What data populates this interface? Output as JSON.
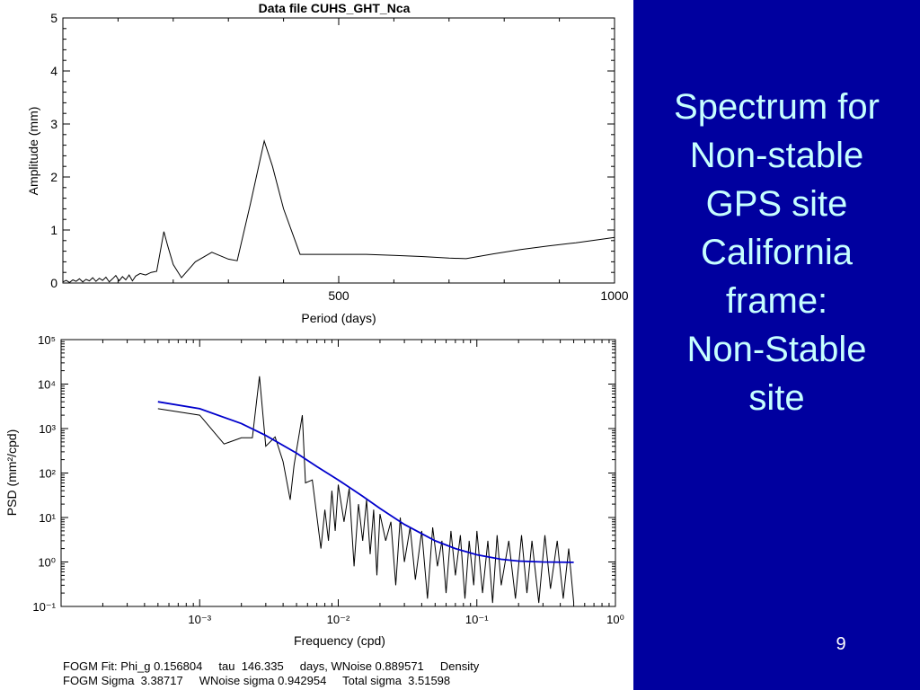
{
  "slide": {
    "title_lines": [
      "Spectrum for",
      "Non-stable",
      "GPS site",
      " California",
      "frame:",
      "Non-Stable",
      "site"
    ],
    "page_number": "9",
    "footer_lines": [
      "FOGM Fit: Phi_g 0.156804     tau  146.335     days, WNoise 0.889571     Density",
      "FOGM Sigma  3.38717     WNoise sigma 0.942954     Total sigma  3.51598"
    ]
  },
  "colors": {
    "panel_background": "#00009f",
    "title_text": "#c6ffff",
    "fit_line": "#0000cc",
    "data_line": "#000000"
  },
  "chart_data": [
    {
      "type": "line",
      "title": "Data file CUHS_GHT_Nca",
      "xlabel": "Period (days)",
      "ylabel": "Amplitude (mm)",
      "xlim": [
        0,
        1000
      ],
      "ylim": [
        0,
        5
      ],
      "xticks": [
        500,
        1000
      ],
      "yticks": [
        0,
        1,
        2,
        3,
        4,
        5
      ],
      "grid": false,
      "series": [
        {
          "x": [
            0,
            6,
            12,
            18,
            24,
            30,
            36,
            42,
            48,
            54,
            60,
            66,
            72,
            78,
            84,
            90,
            96,
            102,
            108,
            114,
            120,
            126,
            132,
            140,
            150,
            160,
            170,
            183,
            190,
            200,
            215,
            240,
            270,
            300,
            316,
            340,
            365,
            380,
            400,
            430,
            480,
            550,
            600,
            650,
            700,
            731,
            780,
            830,
            880,
            930,
            980,
            1000
          ],
          "y": [
            0.02,
            0.05,
            0.01,
            0.06,
            0.03,
            0.08,
            0.02,
            0.07,
            0.04,
            0.1,
            0.03,
            0.09,
            0.05,
            0.11,
            0.02,
            0.08,
            0.14,
            0.04,
            0.12,
            0.06,
            0.15,
            0.04,
            0.13,
            0.18,
            0.15,
            0.2,
            0.22,
            0.97,
            0.7,
            0.35,
            0.1,
            0.4,
            0.58,
            0.45,
            0.42,
            1.5,
            2.68,
            2.2,
            1.4,
            0.54,
            0.54,
            0.54,
            0.52,
            0.5,
            0.47,
            0.46,
            0.55,
            0.63,
            0.7,
            0.76,
            0.83,
            0.86
          ]
        }
      ]
    },
    {
      "type": "line",
      "xlabel": "Frequency (cpd)",
      "ylabel": "PSD (mm²/cpd)",
      "xscale": "log",
      "yscale": "log",
      "xlim": [
        0.0001,
        1
      ],
      "ylim": [
        0.1,
        100000
      ],
      "xtick_labels": [
        "10⁻³",
        "10⁻²",
        "10⁻¹",
        "10⁰"
      ],
      "ytick_labels": [
        "10⁻¹",
        "10⁰",
        "10¹",
        "10²",
        "10³",
        "10⁴",
        "10⁵"
      ],
      "grid": false,
      "series": [
        {
          "x": [
            0.0005,
            0.001,
            0.0015,
            0.002,
            0.0024,
            0.0027,
            0.003,
            0.0035,
            0.004,
            0.0045,
            0.0048,
            0.0055,
            0.0058,
            0.0065,
            0.0075,
            0.008,
            0.0085,
            0.009,
            0.0095,
            0.01,
            0.011,
            0.012,
            0.013,
            0.014,
            0.015,
            0.016,
            0.017,
            0.018,
            0.019,
            0.02,
            0.022,
            0.024,
            0.026,
            0.028,
            0.03,
            0.033,
            0.036,
            0.04,
            0.044,
            0.048,
            0.052,
            0.056,
            0.06,
            0.065,
            0.07,
            0.076,
            0.082,
            0.088,
            0.095,
            0.1,
            0.11,
            0.12,
            0.13,
            0.14,
            0.15,
            0.17,
            0.19,
            0.21,
            0.23,
            0.25,
            0.28,
            0.31,
            0.34,
            0.38,
            0.42,
            0.46,
            0.5
          ],
          "y": [
            2800,
            2000,
            450,
            620,
            620,
            15000,
            400,
            650,
            180,
            25,
            150,
            2000,
            60,
            70,
            2,
            15,
            3,
            40,
            5,
            55,
            8,
            45,
            0.8,
            20,
            3,
            25,
            1.5,
            15,
            0.5,
            12,
            3,
            8,
            0.3,
            10,
            1,
            6,
            0.4,
            5,
            0.15,
            6,
            0.8,
            3,
            0.2,
            5,
            0.5,
            4,
            0.15,
            3,
            0.3,
            5,
            0.2,
            3,
            0.12,
            4,
            0.3,
            3,
            0.15,
            4,
            0.2,
            3,
            0.12,
            4,
            0.25,
            3,
            0.15,
            2,
            0.12
          ]
        },
        {
          "x": [
            0.0005,
            0.001,
            0.002,
            0.003,
            0.005,
            0.007,
            0.01,
            0.015,
            0.02,
            0.03,
            0.05,
            0.07,
            0.1,
            0.15,
            0.2,
            0.3,
            0.5
          ],
          "y": [
            4000,
            2800,
            1300,
            700,
            280,
            140,
            70,
            30,
            16,
            7,
            3,
            2,
            1.45,
            1.15,
            1.05,
            1.0,
            0.98
          ]
        }
      ]
    }
  ]
}
